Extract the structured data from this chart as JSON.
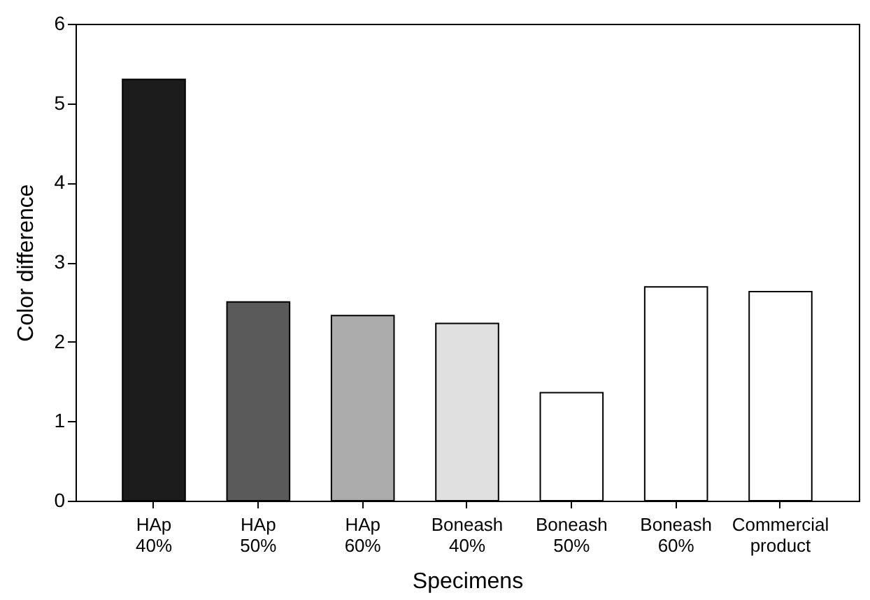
{
  "chart_data": {
    "type": "bar",
    "xlabel": "Specimens",
    "ylabel": "Color difference",
    "categories": [
      "HAp\n40%",
      "HAp\n50%",
      "HAp\n60%",
      "Boneash\n40%",
      "Boneash\n50%",
      "Boneash\n60%",
      "Commercial\nproduct"
    ],
    "values": [
      5.3,
      2.5,
      2.33,
      2.23,
      1.36,
      2.69,
      2.63
    ],
    "colors": [
      "#1c1c1c",
      "#5a5a5a",
      "#acacac",
      "#e0e0e0",
      "#ffffff",
      "#ffffff",
      "#ffffff"
    ],
    "ylim": [
      0,
      6
    ],
    "yticks": [
      0,
      1,
      2,
      3,
      4,
      5,
      6
    ],
    "grid": false
  }
}
